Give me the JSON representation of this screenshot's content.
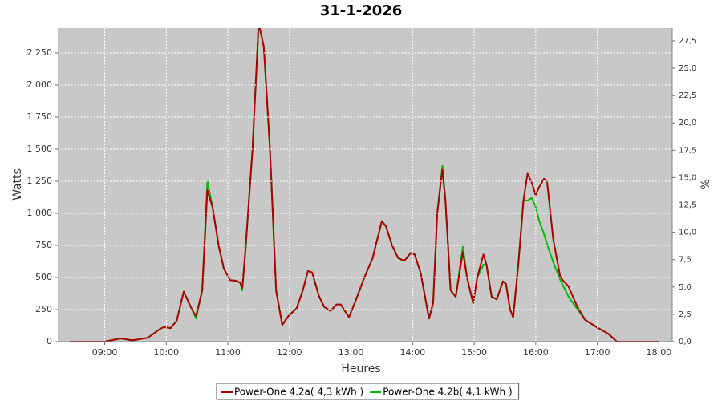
{
  "chart_data": {
    "type": "line",
    "title": "31-1-2026",
    "x_label": "Heures",
    "y_label": "Watts",
    "y2_label": "%",
    "x": [
      506,
      540,
      555,
      567,
      582,
      594,
      598,
      604,
      610,
      617,
      625,
      629,
      635,
      640,
      645,
      651,
      656,
      662,
      668,
      672,
      674,
      677,
      684,
      690,
      695,
      701,
      707,
      713,
      719,
      727,
      733,
      738,
      742,
      749,
      754,
      760,
      766,
      770,
      778,
      785,
      793,
      801,
      810,
      814,
      820,
      826,
      832,
      838,
      842,
      848,
      856,
      860,
      864,
      869,
      872,
      877,
      882,
      889,
      893,
      899,
      903,
      909,
      912,
      917,
      922,
      928,
      931,
      935,
      938,
      943,
      948,
      952,
      956,
      960,
      963,
      968,
      971,
      977,
      984,
      992,
      1000,
      1008,
      1020,
      1031,
      1039,
      1080
    ],
    "xlim": [
      495,
      1093
    ],
    "xticks": [
      {
        "value": 540,
        "label": "09:00"
      },
      {
        "value": 600,
        "label": "10:00"
      },
      {
        "value": 660,
        "label": "11:00"
      },
      {
        "value": 720,
        "label": "12:00"
      },
      {
        "value": 780,
        "label": "13:00"
      },
      {
        "value": 840,
        "label": "14:00"
      },
      {
        "value": 900,
        "label": "15:00"
      },
      {
        "value": 960,
        "label": "16:00"
      },
      {
        "value": 1020,
        "label": "17:00"
      },
      {
        "value": 1080,
        "label": "18:00"
      }
    ],
    "ylim": [
      0,
      2444
    ],
    "yticks": [
      0,
      250,
      500,
      750,
      {
        "value": 1000,
        "label": "1 000"
      },
      {
        "value": 1250,
        "label": "1 250"
      },
      {
        "value": 1500,
        "label": "1 500"
      },
      {
        "value": 1750,
        "label": "1 750"
      },
      {
        "value": 2000,
        "label": "2 000"
      },
      {
        "value": 2250,
        "label": "2 250"
      }
    ],
    "y2lim": [
      0,
      28.67
    ],
    "y2ticks": [
      {
        "value": 0,
        "label": "0,0"
      },
      {
        "value": 2.5,
        "label": "2,5"
      },
      {
        "value": 5,
        "label": "5,0"
      },
      {
        "value": 7.5,
        "label": "7,5"
      },
      {
        "value": 10,
        "label": "10,0"
      },
      {
        "value": 12.5,
        "label": "12,5"
      },
      {
        "value": 15,
        "label": "15,0"
      },
      {
        "value": 17.5,
        "label": "17,5"
      },
      {
        "value": 20,
        "label": "20,0"
      },
      {
        "value": 22.5,
        "label": "22,5"
      },
      {
        "value": 25,
        "label": "25,0"
      },
      {
        "value": 27.5,
        "label": "27,5"
      }
    ],
    "grid": true,
    "background": "#c8c8c8",
    "series": [
      {
        "name": "Power-One 4.2a( 4,3 kWh )",
        "color": "#aa0000",
        "values": [
          0,
          0,
          25,
          10,
          30,
          100,
          115,
          105,
          160,
          390,
          250,
          200,
          400,
          1180,
          1050,
          750,
          570,
          480,
          475,
          460,
          420,
          700,
          1500,
          2480,
          2300,
          1500,
          400,
          130,
          200,
          260,
          400,
          550,
          540,
          350,
          270,
          240,
          290,
          290,
          190,
          330,
          500,
          650,
          940,
          900,
          750,
          650,
          630,
          690,
          680,
          530,
          180,
          300,
          1000,
          1340,
          1100,
          400,
          350,
          700,
          500,
          300,
          500,
          680,
          600,
          350,
          330,
          470,
          450,
          250,
          190,
          600,
          1100,
          1310,
          1240,
          1140,
          1200,
          1270,
          1250,
          800,
          500,
          430,
          280,
          170,
          110,
          60,
          0,
          0
        ]
      },
      {
        "name": "Power-One 4.2b( 4,1 kWh )",
        "color": "#00bb00",
        "values": [
          0,
          0,
          25,
          10,
          30,
          100,
          115,
          105,
          160,
          390,
          250,
          180,
          400,
          1250,
          1050,
          750,
          570,
          480,
          475,
          460,
          400,
          700,
          1500,
          2480,
          2300,
          1500,
          400,
          130,
          200,
          260,
          400,
          550,
          540,
          350,
          270,
          240,
          290,
          290,
          190,
          330,
          500,
          650,
          940,
          900,
          750,
          650,
          630,
          690,
          680,
          530,
          180,
          300,
          1000,
          1370,
          1100,
          400,
          350,
          740,
          500,
          300,
          500,
          600,
          600,
          350,
          330,
          470,
          450,
          250,
          190,
          600,
          1100,
          1100,
          1120,
          1050,
          950,
          840,
          760,
          620,
          480,
          350,
          260,
          170,
          110,
          60,
          0,
          0
        ]
      }
    ]
  }
}
